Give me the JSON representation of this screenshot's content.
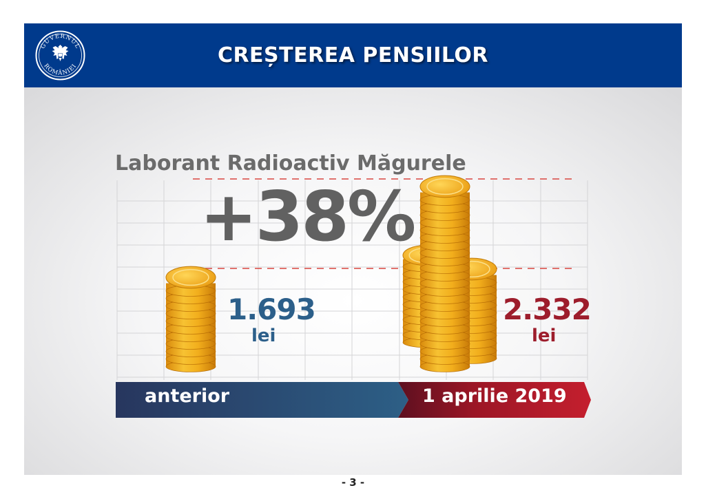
{
  "header": {
    "title": "CREȘTEREA PENSIILOR",
    "logo_text": "GUVERNUL ROMÂNIEI"
  },
  "main": {
    "subtitle": "Laborant Radioactiv Măgurele",
    "increase": "+38%",
    "before": {
      "value": "1.693",
      "unit": "lei",
      "label": "anterior"
    },
    "after": {
      "value": "2.332",
      "unit": "lei",
      "label": "1 aprilie 2019"
    }
  },
  "footer": {
    "page_number": "- 3 -"
  },
  "colors": {
    "header_blue": "#003a8c",
    "before_blue": "#2c5f8a",
    "after_red": "#9d1d2c",
    "coin_gold": "#f2b01e"
  },
  "icons": [
    "government-seal-icon",
    "coin-stack-icon"
  ]
}
